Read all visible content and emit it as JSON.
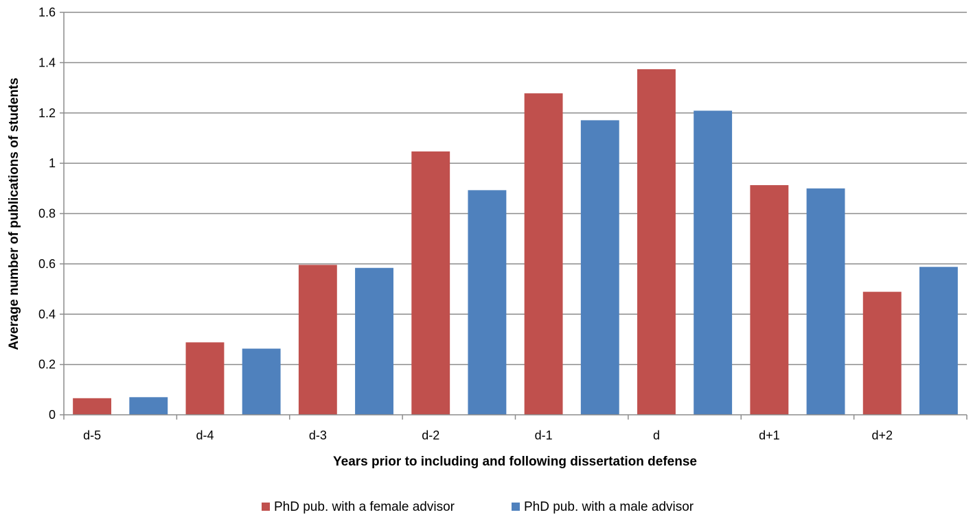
{
  "chart_data": {
    "type": "bar",
    "categories": [
      "d-5",
      "d-4",
      "d-3",
      "d-2",
      "d-1",
      "d",
      "d+1",
      "d+2"
    ],
    "series": [
      {
        "name": "PhD pub. with a female advisor",
        "color": "#C0504D",
        "values": [
          0.066,
          0.288,
          0.596,
          1.047,
          1.278,
          1.374,
          0.913,
          0.489
        ]
      },
      {
        "name": "PhD pub. with a male advisor",
        "color": "#4F81BD",
        "values": [
          0.07,
          0.263,
          0.584,
          0.893,
          1.171,
          1.209,
          0.9,
          0.588
        ]
      }
    ],
    "xlabel": "Years prior to including and following dissertation defense",
    "ylabel": "Average number of publications of students",
    "ylim": [
      0,
      1.6
    ],
    "yticks": [
      0,
      0.2,
      0.4,
      0.6,
      0.8,
      1,
      1.2,
      1.4,
      1.6
    ],
    "ytick_labels": [
      "0",
      "0.2",
      "0.4",
      "0.6",
      "0.8",
      "1",
      "1.2",
      "1.4",
      "1.6"
    ],
    "grid": true,
    "legend_position": "bottom"
  }
}
